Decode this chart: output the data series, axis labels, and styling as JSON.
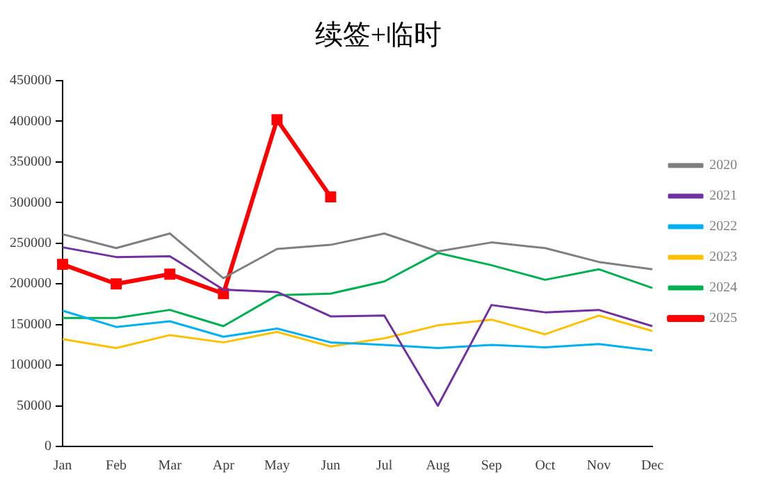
{
  "chart_data": {
    "type": "line",
    "title": "续签+临时",
    "categories": [
      "Jan",
      "Feb",
      "Mar",
      "Apr",
      "May",
      "Jun",
      "Jul",
      "Aug",
      "Sep",
      "Oct",
      "Nov",
      "Dec"
    ],
    "series": [
      {
        "name": "2020",
        "color": "#7f7f7f",
        "marker": "none",
        "values": [
          261000,
          244000,
          262000,
          207000,
          243000,
          248000,
          262000,
          240000,
          251000,
          244000,
          227000,
          218000
        ]
      },
      {
        "name": "2021",
        "color": "#7030a0",
        "marker": "none",
        "values": [
          245000,
          233000,
          234000,
          193000,
          190000,
          160000,
          161000,
          50000,
          174000,
          165000,
          168000,
          148000
        ]
      },
      {
        "name": "2022",
        "color": "#00b0f0",
        "marker": "none",
        "values": [
          167000,
          147000,
          154000,
          135000,
          145000,
          128000,
          125000,
          121000,
          125000,
          122000,
          126000,
          118000
        ]
      },
      {
        "name": "2023",
        "color": "#ffc000",
        "marker": "none",
        "values": [
          132000,
          121000,
          137000,
          128000,
          141000,
          123000,
          133000,
          149000,
          156000,
          138000,
          161000,
          142000
        ]
      },
      {
        "name": "2024",
        "color": "#00b050",
        "marker": "none",
        "values": [
          158000,
          158000,
          168000,
          148000,
          186000,
          188000,
          203000,
          238000,
          223000,
          205000,
          218000,
          195000
        ]
      },
      {
        "name": "2025",
        "color": "#ff0000",
        "marker": "square",
        "values": [
          224000,
          200000,
          212000,
          188000,
          402000,
          307000,
          null,
          null,
          null,
          null,
          null,
          null
        ]
      }
    ],
    "ylim": [
      0,
      450000
    ],
    "yticks": [
      0,
      50000,
      100000,
      150000,
      200000,
      250000,
      300000,
      350000,
      400000,
      450000
    ],
    "grid": false,
    "legend": "right"
  }
}
